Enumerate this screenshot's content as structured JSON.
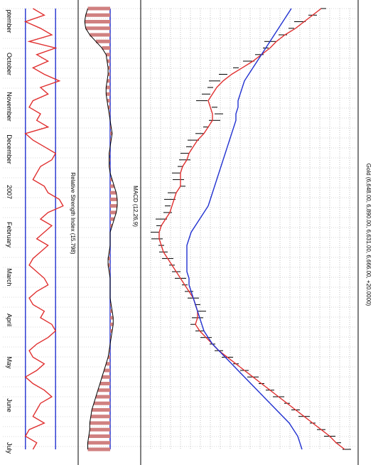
{
  "chart_data": {
    "type": "line",
    "orientation": "rotated-90-clockwise",
    "months": [
      "ptember",
      "October",
      "November",
      "December",
      "2007",
      "February",
      "March",
      "April",
      "May",
      "June",
      "July"
    ],
    "panels": [
      {
        "name": "price",
        "title": "Gold (6,648.00, 6,890.00, 6,631.00, 6,666.00, +20.0000)",
        "ylim": [
          0,
          100
        ],
        "series": [
          {
            "kind": "candles",
            "color": "#000000",
            "values": [
              85,
              80,
              74,
              70,
              66,
              60,
              58,
              55,
              50,
              44,
              38,
              34,
              32,
              30,
              28,
              34,
              36,
              34,
              30,
              27,
              24,
              22,
              20,
              20,
              18,
              16,
              17,
              19,
              14,
              13,
              12,
              12,
              9,
              8,
              6,
              7,
              9,
              10,
              12,
              14,
              16,
              18,
              20,
              22,
              24,
              26,
              28,
              26,
              24,
              27,
              30,
              33,
              36,
              40,
              44,
              48,
              52,
              56,
              60,
              64,
              68,
              72,
              76,
              80,
              84,
              88,
              92,
              96
            ]
          },
          {
            "kind": "line",
            "color": "#e03030",
            "values": [
              84,
              80,
              76,
              72,
              67,
              63,
              60,
              56,
              52,
              47,
              42,
              38,
              35,
              33,
              31,
              32,
              33,
              33,
              31,
              29,
              26,
              24,
              22,
              21,
              19,
              18,
              18,
              18,
              16,
              15,
              14,
              13,
              11,
              9,
              8,
              8,
              9,
              10,
              12,
              14,
              16,
              18,
              20,
              22,
              24,
              25,
              26,
              26,
              25,
              27,
              30,
              33,
              36,
              40,
              44,
              48,
              52,
              56,
              60,
              64,
              68,
              72,
              76,
              80,
              84,
              88,
              91,
              95
            ]
          },
          {
            "kind": "line",
            "color": "#2030d0",
            "values": [
              70,
              68,
              66,
              64,
              62,
              60,
              58,
              56,
              54,
              52,
              50,
              48,
              47,
              46,
              45,
              45,
              44,
              44,
              43,
              42,
              41,
              40,
              39,
              38,
              37,
              36,
              35,
              34,
              33,
              32,
              31,
              29,
              27,
              25,
              23,
              22,
              21,
              21,
              21,
              21,
              21,
              22,
              22,
              23,
              24,
              25,
              26,
              27,
              28,
              29,
              31,
              33,
              36,
              39,
              42,
              45,
              48,
              51,
              54,
              57,
              60,
              63,
              66,
              69,
              71,
              73,
              74,
              75
            ]
          }
        ]
      },
      {
        "name": "macd",
        "title": "MACD (12,26,9)",
        "ylim": [
          -30,
          30
        ],
        "series": [
          {
            "kind": "histogram",
            "color": "#d08080",
            "values": [
              -22,
              -24,
              -25,
              -24,
              -20,
              -14,
              -8,
              -4,
              -3,
              -2,
              -2,
              -3,
              -4,
              -4,
              -3,
              -2,
              -1,
              0,
              1,
              2,
              1,
              0,
              -1,
              -1,
              -1,
              0,
              2,
              4,
              6,
              7,
              7,
              6,
              4,
              2,
              0,
              0,
              0,
              -1,
              -2,
              -2,
              -1,
              0,
              0,
              0,
              0,
              1,
              2,
              3,
              3,
              2,
              1,
              0,
              -1,
              -2,
              -4,
              -6,
              -8,
              -10,
              -12,
              -14,
              -16,
              -18,
              -19,
              -20,
              -20,
              -21,
              -22,
              -22
            ]
          }
        ]
      },
      {
        "name": "rsi",
        "title": "Relative Strength Index (15.798)",
        "ylim": [
          0,
          100
        ],
        "levels": [
          30,
          70
        ],
        "series": [
          {
            "kind": "line",
            "color": "#e03030",
            "values": [
              40,
              55,
              30,
              50,
              65,
              35,
              70,
              45,
              60,
              40,
              55,
              75,
              50,
              60,
              40,
              35,
              50,
              45,
              60,
              30,
              40,
              55,
              70,
              65,
              50,
              45,
              40,
              55,
              60,
              75,
              80,
              60,
              50,
              65,
              55,
              45,
              60,
              50,
              40,
              35,
              45,
              55,
              60,
              45,
              35,
              40,
              55,
              50,
              65,
              70,
              60,
              45,
              35,
              40,
              55,
              45,
              30,
              40,
              55,
              65,
              50,
              45,
              40,
              55,
              35,
              30,
              45,
              40
            ]
          }
        ]
      }
    ]
  }
}
